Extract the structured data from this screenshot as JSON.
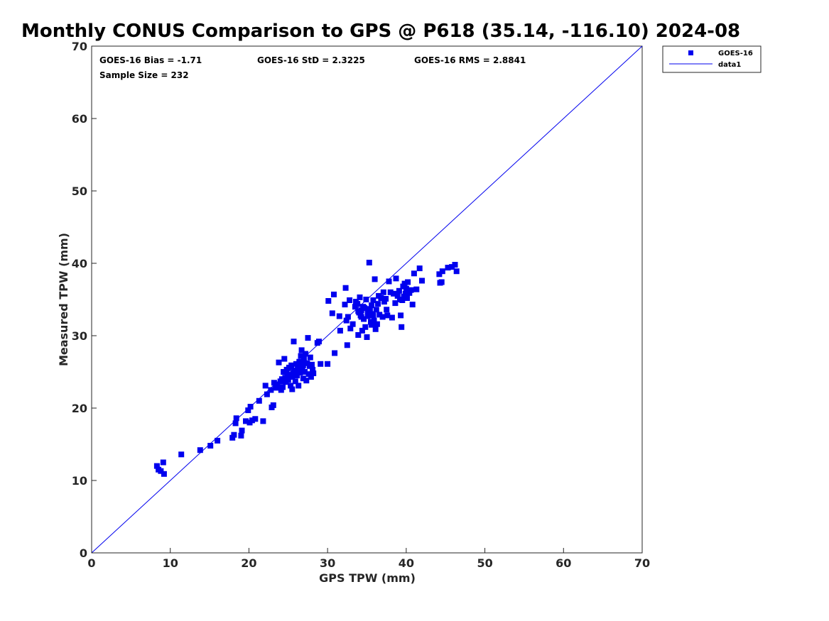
{
  "chart_data": {
    "type": "scatter",
    "title": "Monthly CONUS Comparison to GPS @ P618 (35.14, -116.10) 2024-08",
    "xlabel": "GPS TPW (mm)",
    "ylabel": "Measured TPW (mm)",
    "xlim": [
      0,
      70
    ],
    "ylim": [
      0,
      70
    ],
    "xticks": [
      "0",
      "10",
      "20",
      "30",
      "40",
      "50",
      "60",
      "70"
    ],
    "yticks": [
      "0",
      "10",
      "20",
      "30",
      "40",
      "50",
      "60",
      "70"
    ],
    "grid": false,
    "legend_position": "outside-top-right",
    "annotations": {
      "bias": "GOES-16 Bias = -1.71",
      "std": "GOES-16 StD = 2.3225",
      "rms": "GOES-16 RMS = 2.8841",
      "sample": "Sample Size = 232"
    },
    "series": [
      {
        "name": "GOES-16",
        "kind": "scatter",
        "marker": "square",
        "color": "#0000ee",
        "points": [
          [
            8.3,
            12.0
          ],
          [
            8.5,
            11.5
          ],
          [
            8.8,
            11.3
          ],
          [
            9.1,
            12.5
          ],
          [
            9.2,
            10.9
          ],
          [
            11.4,
            13.6
          ],
          [
            13.8,
            14.2
          ],
          [
            15.1,
            14.8
          ],
          [
            16.0,
            15.5
          ],
          [
            17.9,
            15.9
          ],
          [
            18.1,
            16.3
          ],
          [
            18.3,
            17.9
          ],
          [
            18.4,
            18.6
          ],
          [
            19.0,
            16.2
          ],
          [
            19.1,
            16.9
          ],
          [
            19.6,
            18.2
          ],
          [
            19.9,
            19.7
          ],
          [
            20.1,
            18.0
          ],
          [
            20.2,
            20.2
          ],
          [
            20.4,
            18.3
          ],
          [
            20.8,
            18.5
          ],
          [
            21.3,
            21.0
          ],
          [
            21.8,
            18.2
          ],
          [
            22.1,
            23.1
          ],
          [
            22.3,
            21.9
          ],
          [
            22.8,
            22.5
          ],
          [
            22.9,
            20.1
          ],
          [
            23.1,
            20.4
          ],
          [
            23.2,
            23.5
          ],
          [
            23.4,
            22.8
          ],
          [
            23.6,
            23.2
          ],
          [
            23.8,
            26.3
          ],
          [
            24.0,
            23.7
          ],
          [
            24.1,
            22.5
          ],
          [
            24.2,
            24.0
          ],
          [
            24.3,
            22.9
          ],
          [
            24.4,
            25.0
          ],
          [
            24.5,
            26.8
          ],
          [
            24.6,
            24.2
          ],
          [
            24.7,
            23.6
          ],
          [
            24.8,
            25.3
          ],
          [
            24.9,
            24.6
          ],
          [
            25.0,
            23.9
          ],
          [
            25.1,
            25.6
          ],
          [
            25.2,
            24.4
          ],
          [
            25.3,
            23.1
          ],
          [
            25.4,
            25.9
          ],
          [
            25.5,
            22.6
          ],
          [
            25.6,
            24.8
          ],
          [
            25.7,
            29.2
          ],
          [
            25.8,
            25.2
          ],
          [
            25.9,
            23.7
          ],
          [
            26.0,
            26.1
          ],
          [
            26.1,
            24.5
          ],
          [
            26.2,
            25.7
          ],
          [
            26.3,
            23.1
          ],
          [
            26.4,
            26.4
          ],
          [
            26.5,
            24.9
          ],
          [
            26.6,
            27.2
          ],
          [
            26.7,
            28.0
          ],
          [
            26.8,
            25.4
          ],
          [
            26.9,
            24.1
          ],
          [
            27.0,
            26.8
          ],
          [
            27.1,
            25.0
          ],
          [
            27.2,
            27.5
          ],
          [
            27.3,
            23.8
          ],
          [
            27.4,
            26.2
          ],
          [
            27.5,
            29.7
          ],
          [
            27.6,
            24.7
          ],
          [
            27.7,
            25.8
          ],
          [
            27.8,
            27.0
          ],
          [
            27.9,
            24.3
          ],
          [
            28.0,
            26.0
          ],
          [
            28.1,
            25.3
          ],
          [
            28.2,
            24.8
          ],
          [
            28.7,
            29.0
          ],
          [
            28.9,
            29.2
          ],
          [
            29.1,
            26.1
          ],
          [
            30.0,
            26.1
          ],
          [
            30.1,
            34.8
          ],
          [
            30.6,
            33.1
          ],
          [
            30.8,
            35.7
          ],
          [
            30.9,
            27.6
          ],
          [
            31.5,
            32.7
          ],
          [
            31.6,
            30.7
          ],
          [
            32.2,
            34.3
          ],
          [
            32.3,
            36.6
          ],
          [
            32.4,
            32.1
          ],
          [
            32.5,
            28.7
          ],
          [
            32.6,
            32.6
          ],
          [
            32.8,
            34.9
          ],
          [
            32.9,
            31.0
          ],
          [
            33.2,
            31.6
          ],
          [
            33.5,
            34.0
          ],
          [
            33.6,
            34.7
          ],
          [
            33.8,
            34.4
          ],
          [
            33.9,
            30.1
          ],
          [
            34.0,
            33.2
          ],
          [
            34.1,
            35.3
          ],
          [
            34.2,
            32.8
          ],
          [
            34.3,
            33.5
          ],
          [
            34.4,
            30.7
          ],
          [
            34.5,
            34.0
          ],
          [
            34.6,
            32.3
          ],
          [
            34.7,
            33.8
          ],
          [
            34.8,
            31.2
          ],
          [
            34.9,
            35.0
          ],
          [
            35.0,
            29.8
          ],
          [
            35.1,
            32.7
          ],
          [
            35.2,
            33.4
          ],
          [
            35.3,
            40.1
          ],
          [
            35.4,
            33.7
          ],
          [
            35.5,
            31.9
          ],
          [
            35.6,
            34.2
          ],
          [
            35.7,
            33.0
          ],
          [
            35.8,
            34.9
          ],
          [
            35.9,
            32.1
          ],
          [
            36.0,
            37.8
          ],
          [
            36.1,
            30.9
          ],
          [
            36.2,
            33.6
          ],
          [
            36.3,
            31.6
          ],
          [
            36.4,
            34.4
          ],
          [
            36.5,
            35.5
          ],
          [
            36.6,
            32.9
          ],
          [
            36.8,
            35.2
          ],
          [
            37.0,
            32.6
          ],
          [
            37.1,
            36.0
          ],
          [
            37.2,
            34.7
          ],
          [
            37.4,
            35.1
          ],
          [
            37.5,
            33.6
          ],
          [
            37.6,
            32.8
          ],
          [
            37.8,
            37.5
          ],
          [
            38.0,
            36.0
          ],
          [
            38.2,
            32.5
          ],
          [
            38.4,
            35.8
          ],
          [
            38.6,
            34.5
          ],
          [
            38.7,
            37.9
          ],
          [
            38.9,
            35.5
          ],
          [
            39.1,
            36.2
          ],
          [
            39.2,
            35.0
          ],
          [
            39.3,
            32.8
          ],
          [
            39.4,
            31.2
          ],
          [
            39.5,
            34.9
          ],
          [
            39.6,
            36.8
          ],
          [
            39.7,
            35.4
          ],
          [
            39.8,
            37.2
          ],
          [
            39.9,
            35.8
          ],
          [
            40.0,
            36.5
          ],
          [
            40.1,
            35.2
          ],
          [
            40.2,
            37.4
          ],
          [
            40.4,
            35.9
          ],
          [
            40.6,
            36.3
          ],
          [
            40.8,
            34.3
          ],
          [
            41.0,
            38.6
          ],
          [
            41.3,
            36.4
          ],
          [
            41.7,
            39.3
          ],
          [
            42.0,
            37.6
          ],
          [
            44.2,
            38.5
          ],
          [
            44.3,
            37.3
          ],
          [
            44.5,
            37.4
          ],
          [
            44.6,
            38.9
          ],
          [
            45.3,
            39.4
          ],
          [
            45.8,
            39.5
          ],
          [
            46.2,
            39.8
          ],
          [
            46.4,
            38.9
          ],
          [
            34.6,
            33.9
          ],
          [
            35.1,
            33.3
          ],
          [
            35.6,
            31.5
          ],
          [
            34.3,
            32.6
          ],
          [
            35.8,
            32.8
          ],
          [
            33.9,
            33.4
          ],
          [
            25.8,
            24.9
          ],
          [
            26.4,
            25.1
          ],
          [
            27.0,
            26.3
          ],
          [
            24.9,
            24.0
          ],
          [
            26.9,
            25.9
          ],
          [
            25.5,
            24.3
          ]
        ]
      },
      {
        "name": "data1",
        "kind": "line",
        "color": "#0000ee",
        "x": [
          0,
          70
        ],
        "y": [
          0,
          70
        ]
      }
    ]
  }
}
